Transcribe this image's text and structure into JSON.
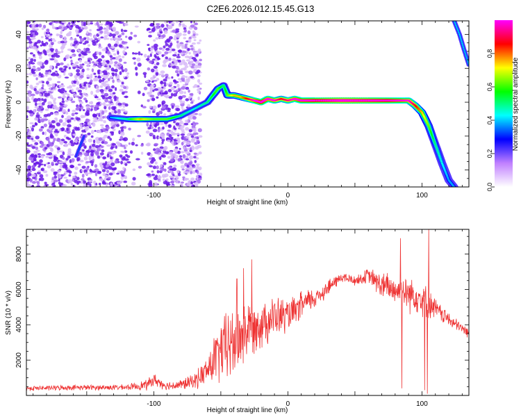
{
  "figure_title": "C2E6.2026.012.15.45.G13",
  "chart_data": [
    {
      "type": "heatmap",
      "name": "spectrogram",
      "xlabel": "Height of straight line (km)",
      "ylabel": "Frequency (Hz)",
      "xlim": [
        -195,
        135
      ],
      "ylim": [
        -50,
        48
      ],
      "xticks": [
        -100,
        0,
        100
      ],
      "xtick_labels": [
        "-100",
        "0",
        "100"
      ],
      "yticks": [
        -40,
        -20,
        0,
        20,
        40
      ],
      "ytick_labels": [
        "-40",
        "-20",
        "0",
        "20",
        "40"
      ],
      "colorbar": {
        "label": "Normalized spectral amplitude",
        "range": [
          0,
          1
        ],
        "ticks": [
          0.0,
          0.2,
          0.4,
          0.6,
          0.8
        ],
        "tick_labels": [
          "0.0",
          "0.2",
          "0.4",
          "0.6",
          "0.8"
        ],
        "colors": [
          "#ffffff",
          "#c080ff",
          "#0000ff",
          "#00ffff",
          "#00ff00",
          "#ffff00",
          "#ff0000",
          "#ff00ff"
        ]
      },
      "main_track": {
        "x": [
          -132,
          -120,
          -110,
          -100,
          -90,
          -80,
          -70,
          -60,
          -52,
          -48,
          -45,
          -40,
          -35,
          -30,
          -25,
          -20,
          -15,
          -10,
          -5,
          0,
          5,
          10,
          20,
          40,
          60,
          75,
          90,
          95,
          100,
          105,
          110,
          115,
          120,
          124
        ],
        "freq": [
          -9,
          -10,
          -10,
          -10,
          -10,
          -8,
          -4,
          0,
          8,
          10,
          4,
          4,
          3,
          2,
          1,
          0,
          2,
          1,
          2,
          1,
          2,
          1,
          1,
          1,
          1,
          1,
          1,
          -2,
          -6,
          -14,
          -25,
          -36,
          -46,
          -50
        ],
        "amplitude": [
          0.3,
          0.4,
          0.6,
          0.5,
          0.5,
          0.4,
          0.35,
          0.4,
          0.5,
          0.4,
          0.5,
          0.6,
          0.6,
          0.7,
          0.8,
          0.9,
          0.8,
          0.8,
          0.7,
          0.75,
          0.8,
          0.85,
          0.9,
          1.0,
          0.95,
          0.9,
          0.8,
          0.7,
          0.6,
          0.5,
          0.4,
          0.35,
          0.3,
          0.3
        ]
      },
      "secondary_track": {
        "x": [
          124,
          128,
          131,
          135
        ],
        "freq": [
          48,
          40,
          32,
          22
        ],
        "amplitude": [
          0.35,
          0.35,
          0.35,
          0.35
        ]
      },
      "minor_track": {
        "x": [
          -158,
          -155,
          -152
        ],
        "freq": [
          -32,
          -26,
          -20
        ],
        "amplitude": [
          0.25,
          0.3,
          0.25
        ]
      },
      "noise_region_km": [
        -195,
        -65
      ]
    },
    {
      "type": "line",
      "name": "snr",
      "xlabel": "Height of straight line (km)",
      "ylabel": "SNR (10 * v/v)",
      "xlim": [
        -195,
        135
      ],
      "ylim": [
        0,
        9400
      ],
      "xticks": [
        -100,
        0,
        100
      ],
      "xtick_labels": [
        "-100",
        "0",
        "100"
      ],
      "yticks": [
        2000,
        4000,
        6000,
        8000
      ],
      "ytick_labels": [
        "2000",
        "4000",
        "6000",
        "8000"
      ],
      "line_color": "#ee3333",
      "envelope": {
        "x": [
          -195,
          -180,
          -160,
          -140,
          -120,
          -105,
          -100,
          -95,
          -90,
          -80,
          -70,
          -60,
          -55,
          -50,
          -45,
          -40,
          -35,
          -30,
          -25,
          -20,
          -15,
          -10,
          -5,
          0,
          5,
          10,
          15,
          20,
          25,
          30,
          35,
          40,
          45,
          50,
          55,
          60,
          65,
          70,
          75,
          80,
          85,
          90,
          95,
          100,
          105,
          110,
          115,
          120,
          125,
          130,
          135
        ],
        "y": [
          400,
          420,
          450,
          450,
          460,
          600,
          900,
          700,
          550,
          600,
          800,
          1400,
          2000,
          2500,
          2800,
          3000,
          3400,
          3700,
          3900,
          4100,
          4300,
          4400,
          4500,
          4500,
          4700,
          5100,
          5300,
          5500,
          5800,
          6100,
          6400,
          6700,
          6600,
          6500,
          6600,
          6800,
          6500,
          6200,
          6100,
          6000,
          5900,
          5800,
          5700,
          5500,
          5200,
          4900,
          4600,
          4300,
          4000,
          3800,
          3500
        ],
        "noise": [
          120,
          120,
          120,
          130,
          130,
          250,
          300,
          250,
          200,
          250,
          350,
          700,
          1200,
          1500,
          1700,
          1800,
          1800,
          1400,
          1200,
          1200,
          1100,
          1000,
          900,
          800,
          700,
          650,
          600,
          500,
          450,
          400,
          300,
          250,
          250,
          250,
          300,
          350,
          500,
          650,
          700,
          750,
          800,
          900,
          850,
          800,
          700,
          500,
          400,
          350,
          300,
          250,
          250
        ]
      },
      "peaks": [
        {
          "x": -38,
          "y": 6600
        },
        {
          "x": -33,
          "y": 7200
        },
        {
          "x": -27,
          "y": 7700
        },
        {
          "x": 84,
          "y": 8900
        },
        {
          "x": 105,
          "y": 9400
        }
      ],
      "dips": [
        {
          "x": 85,
          "y": 400
        },
        {
          "x": 102,
          "y": 300
        },
        {
          "x": 104,
          "y": 100
        }
      ]
    }
  ]
}
